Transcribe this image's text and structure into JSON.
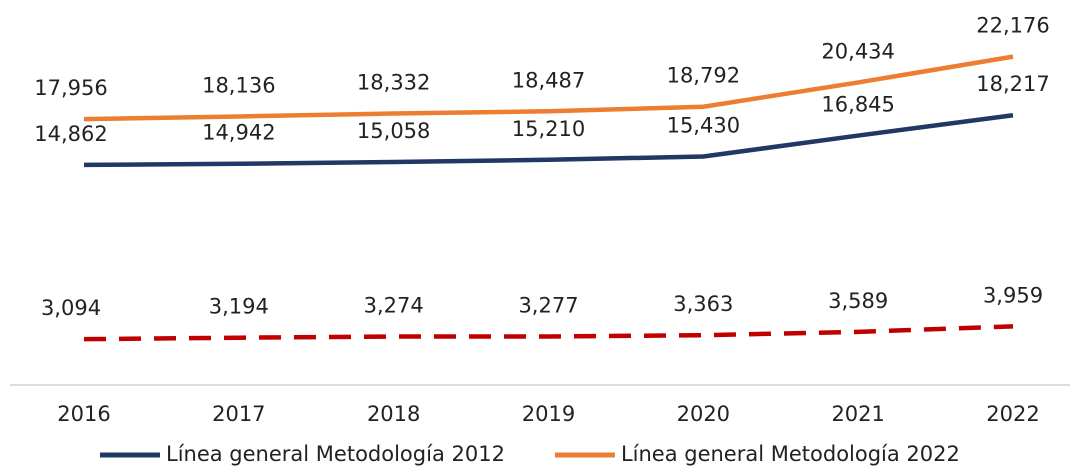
{
  "chart_data": {
    "type": "line",
    "categories": [
      "2016",
      "2017",
      "2018",
      "2019",
      "2020",
      "2021",
      "2022"
    ],
    "series": [
      {
        "name": "Línea general Metodología 2012",
        "color": "#1f3864",
        "values": [
          14862,
          14942,
          15058,
          15210,
          15430,
          16845,
          18217
        ],
        "value_labels": [
          "14,862",
          "14,942",
          "15,058",
          "15,210",
          "15,430",
          "16,845",
          "18,217"
        ]
      },
      {
        "name": "Línea general Metodología 2022",
        "color": "#ed7d31",
        "values": [
          17956,
          18136,
          18332,
          18487,
          18792,
          20434,
          22176
        ],
        "value_labels": [
          "17,956",
          "18,136",
          "18,332",
          "18,487",
          "18,792",
          "20,434",
          "22,176"
        ]
      },
      {
        "color": "#c00000",
        "line_style": "dashed",
        "values": [
          3094,
          3194,
          3274,
          3277,
          3363,
          3589,
          3959
        ],
        "value_labels": [
          "3,094",
          "3,194",
          "3,274",
          "3,277",
          "3,363",
          "3,589",
          "3,959"
        ]
      }
    ],
    "ylim": [
      0,
      26000
    ]
  }
}
